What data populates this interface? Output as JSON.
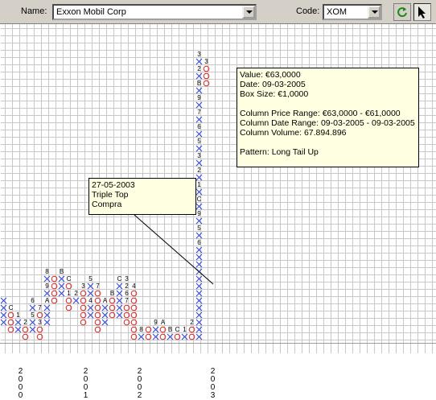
{
  "toolbar": {
    "name_label": "Name:",
    "name_value": "Exxon Mobil Corp",
    "code_label": "Code:",
    "code_value": "XOM",
    "refresh_icon": "refresh-icon",
    "pointer_icon": "pointer-arrow-icon"
  },
  "colors": {
    "x_color": "#2b3fd6",
    "o_color": "#e02020",
    "highlight": "#c9c935"
  },
  "years": [
    "2000",
    "2001",
    "2002",
    "2003"
  ],
  "annotation": {
    "date": "27-05-2003",
    "pattern": "Triple Top",
    "signal": "Compra"
  },
  "info": {
    "value": "Value: €63,0000",
    "date": "Date: 09-03-2005",
    "box_size": "Box Size: €1,0000",
    "price_range": "Column Price Range: €63,0000 - €61,0000",
    "date_range": "Column Date Range: 09-03-2005 - 09-03-2005",
    "volume": "Column Volume: 67.894.896",
    "pattern": "Pattern: Long Tail Up"
  },
  "chart_data": {
    "type": "point-and-figure",
    "box_size": 1,
    "columns": [
      {
        "kind": "X",
        "top": 29,
        "bottom": 26,
        "labels": []
      },
      {
        "kind": "O",
        "top": 28,
        "bottom": 25,
        "labels": [
          "C"
        ]
      },
      {
        "kind": "X",
        "top": 27,
        "bottom": 25,
        "labels": [
          "1"
        ]
      },
      {
        "kind": "O",
        "top": 26,
        "bottom": 24,
        "labels": [
          "2"
        ]
      },
      {
        "kind": "X",
        "top": 29,
        "bottom": 25,
        "labels": [
          "6",
          "5"
        ]
      },
      {
        "kind": "O",
        "top": 28,
        "bottom": 24,
        "labels": [
          "7",
          "3"
        ]
      },
      {
        "kind": "X",
        "top": 33,
        "bottom": 26,
        "labels": [
          "8",
          "9",
          "A"
        ]
      },
      {
        "kind": "O",
        "top": 32,
        "bottom": 29,
        "labels": []
      },
      {
        "kind": "X",
        "top": 33,
        "bottom": 30,
        "labels": [
          "B"
        ]
      },
      {
        "kind": "O",
        "top": 32,
        "bottom": 28,
        "labels": [
          "C",
          "1"
        ]
      },
      {
        "kind": "X",
        "top": 30,
        "bottom": 29,
        "labels": [
          "2"
        ]
      },
      {
        "kind": "O",
        "top": 31,
        "bottom": 26,
        "labels": [
          "3"
        ]
      },
      {
        "kind": "X",
        "top": 32,
        "bottom": 27,
        "labels": [
          "5",
          "4"
        ]
      },
      {
        "kind": "O",
        "top": 31,
        "bottom": 25,
        "labels": [
          "7"
        ]
      },
      {
        "kind": "X",
        "top": 29,
        "bottom": 26,
        "labels": [
          "A"
        ]
      },
      {
        "kind": "O",
        "top": 30,
        "bottom": 27,
        "labels": [
          "B"
        ]
      },
      {
        "kind": "X",
        "top": 32,
        "bottom": 27,
        "labels": [
          "C"
        ]
      },
      {
        "kind": "O",
        "top": 32,
        "bottom": 26,
        "labels": [
          "3",
          "2",
          "6",
          "7"
        ]
      },
      {
        "kind": "O",
        "top": 31,
        "bottom": 19,
        "labels": [
          "4"
        ]
      },
      {
        "kind": "X",
        "top": 25,
        "bottom": 22,
        "labels": [
          "8"
        ]
      },
      {
        "kind": "O",
        "top": 25,
        "bottom": 23,
        "labels": []
      },
      {
        "kind": "X",
        "top": 26,
        "bottom": 23,
        "labels": [
          "9"
        ]
      },
      {
        "kind": "O",
        "top": 26,
        "bottom": 22,
        "labels": [
          "A"
        ]
      },
      {
        "kind": "X",
        "top": 25,
        "bottom": 23,
        "labels": [
          "B"
        ]
      },
      {
        "kind": "O",
        "top": 25,
        "bottom": 24,
        "labels": [
          "C"
        ]
      },
      {
        "kind": "X",
        "top": 25,
        "bottom": 23,
        "labels": [
          "1"
        ]
      },
      {
        "kind": "O",
        "top": 26,
        "bottom": 22,
        "labels": [
          "2"
        ]
      },
      {
        "kind": "X",
        "top": 63,
        "bottom": 23,
        "labels": [
          "3",
          "2",
          "B",
          "9",
          "7",
          "6",
          "5",
          "3",
          "2",
          "1",
          "C",
          "9",
          "5",
          "6"
        ]
      },
      {
        "kind": "O",
        "top": 62,
        "bottom": 59,
        "labels": [
          "3"
        ]
      }
    ]
  }
}
